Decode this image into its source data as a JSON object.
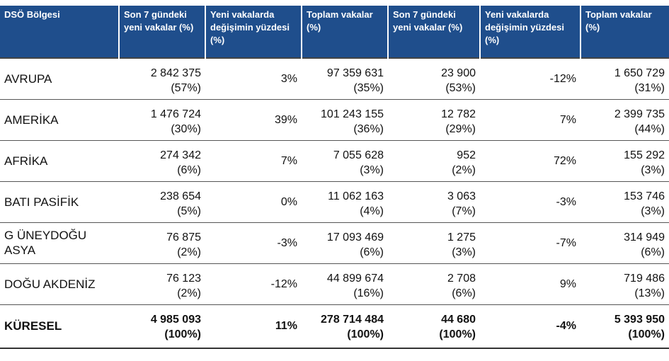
{
  "headers": [
    "DSÖ Bölgesi",
    "Son 7 gündeki yeni vakalar (%)",
    "Yeni vakalarda değişimin yüzdesi (%)",
    "Toplam vakalar (%)",
    "Son 7 gündeki yeni vakalar (%)",
    "Yeni vakalarda değişimin yüzdesi (%)",
    "Toplam vakalar (%)"
  ],
  "rows": [
    {
      "region": "AVRUPA",
      "c1a": "2 842 375",
      "c1b": "(57%)",
      "c2": "3%",
      "c3a": "97 359 631",
      "c3b": "(35%)",
      "c4a": "23 900",
      "c4b": "(53%)",
      "c5": "-12%",
      "c6a": "1 650 729",
      "c6b": "(31%)"
    },
    {
      "region": "AMERİKA",
      "c1a": "1 476 724",
      "c1b": "(30%)",
      "c2": "39%",
      "c3a": "101 243 155",
      "c3b": "(36%)",
      "c4a": "12 782",
      "c4b": "(29%)",
      "c5": "7%",
      "c6a": "2 399 735",
      "c6b": "(44%)"
    },
    {
      "region": "AFRİKA",
      "c1a": "274 342",
      "c1b": "(6%)",
      "c2": "7%",
      "c3a": "7 055 628",
      "c3b": "(3%)",
      "c4a": "952",
      "c4b": "(2%)",
      "c5": "72%",
      "c6a": "155 292",
      "c6b": "(3%)"
    },
    {
      "region": "BATI PASİFİK",
      "c1a": "238 654",
      "c1b": "(5%)",
      "c2": "0%",
      "c3a": "11 062 163",
      "c3b": "(4%)",
      "c4a": "3 063",
      "c4b": "(7%)",
      "c5": "-3%",
      "c6a": "153 746",
      "c6b": "(3%)"
    },
    {
      "region": "G ÜNEYDOĞU ASYA",
      "c1a": "76 875",
      "c1b": "(2%)",
      "c2": "-3%",
      "c3a": "17 093 469",
      "c3b": "(6%)",
      "c4a": "1 275",
      "c4b": "(3%)",
      "c5": "-7%",
      "c6a": "314 949",
      "c6b": "(6%)"
    },
    {
      "region": "DOĞU AKDENİZ",
      "c1a": "76 123",
      "c1b": "(2%)",
      "c2": "-12%",
      "c3a": "44 899 674",
      "c3b": "(16%)",
      "c4a": "2 708",
      "c4b": "(6%)",
      "c5": "9%",
      "c6a": "719 486",
      "c6b": "(13%)"
    }
  ],
  "total": {
    "region": "KÜRESEL",
    "c1a": "4 985 093",
    "c1b": "(100%)",
    "c2": "11%",
    "c3a": "278 714 484",
    "c3b": "(100%)",
    "c4a": "44 680",
    "c4b": "(100%)",
    "c5": "-4%",
    "c6a": "5 393 950",
    "c6b": "(100%)"
  },
  "colors": {
    "header_bg": "#1f4e8c",
    "header_text": "#ffffff"
  }
}
